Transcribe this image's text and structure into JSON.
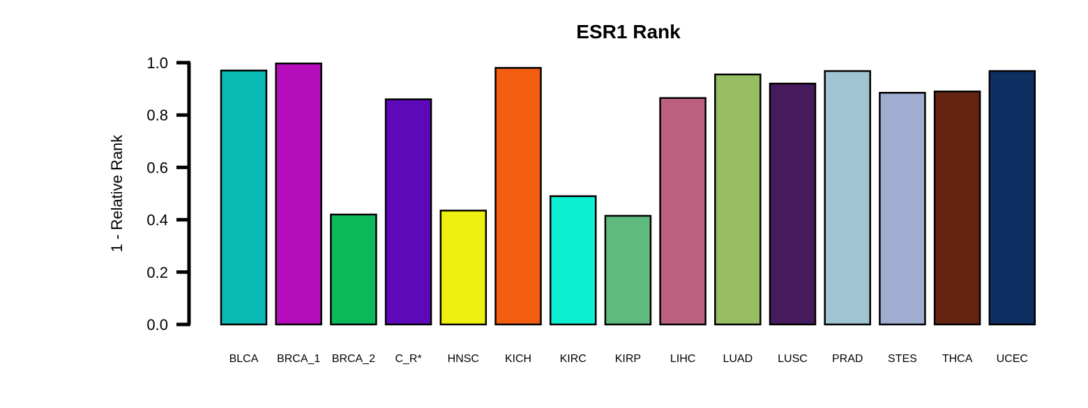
{
  "chart_data": {
    "type": "bar",
    "title": "ESR1 Rank",
    "xlabel": "",
    "ylabel": "1 - Relative Rank",
    "ylim": [
      0,
      1.0
    ],
    "yticks": [
      0.0,
      0.2,
      0.4,
      0.6,
      0.8,
      1.0
    ],
    "ytick_labels": [
      "0.0",
      "0.2",
      "0.4",
      "0.6",
      "0.8",
      "1.0"
    ],
    "grid": false,
    "legend": "none",
    "categories": [
      "BLCA",
      "BRCA_1",
      "BRCA_2",
      "C_R*",
      "HNSC",
      "KICH",
      "KIRC",
      "KIRP",
      "LIHC",
      "LUAD",
      "LUSC",
      "PRAD",
      "STES",
      "THCA",
      "UCEC"
    ],
    "values": [
      0.97,
      0.997,
      0.42,
      0.86,
      0.435,
      0.98,
      0.49,
      0.415,
      0.865,
      0.955,
      0.92,
      0.968,
      0.885,
      0.89,
      0.968
    ],
    "colors": [
      "#0ABAB5",
      "#B50CBC",
      "#0BB85A",
      "#5E09B9",
      "#EEF00D",
      "#F25E10",
      "#0DF0D1",
      "#5FBA7D",
      "#BD6180",
      "#97BE62",
      "#461B5E",
      "#A0C4D2",
      "#A0ADD1",
      "#652412",
      "#0F2E62"
    ]
  }
}
